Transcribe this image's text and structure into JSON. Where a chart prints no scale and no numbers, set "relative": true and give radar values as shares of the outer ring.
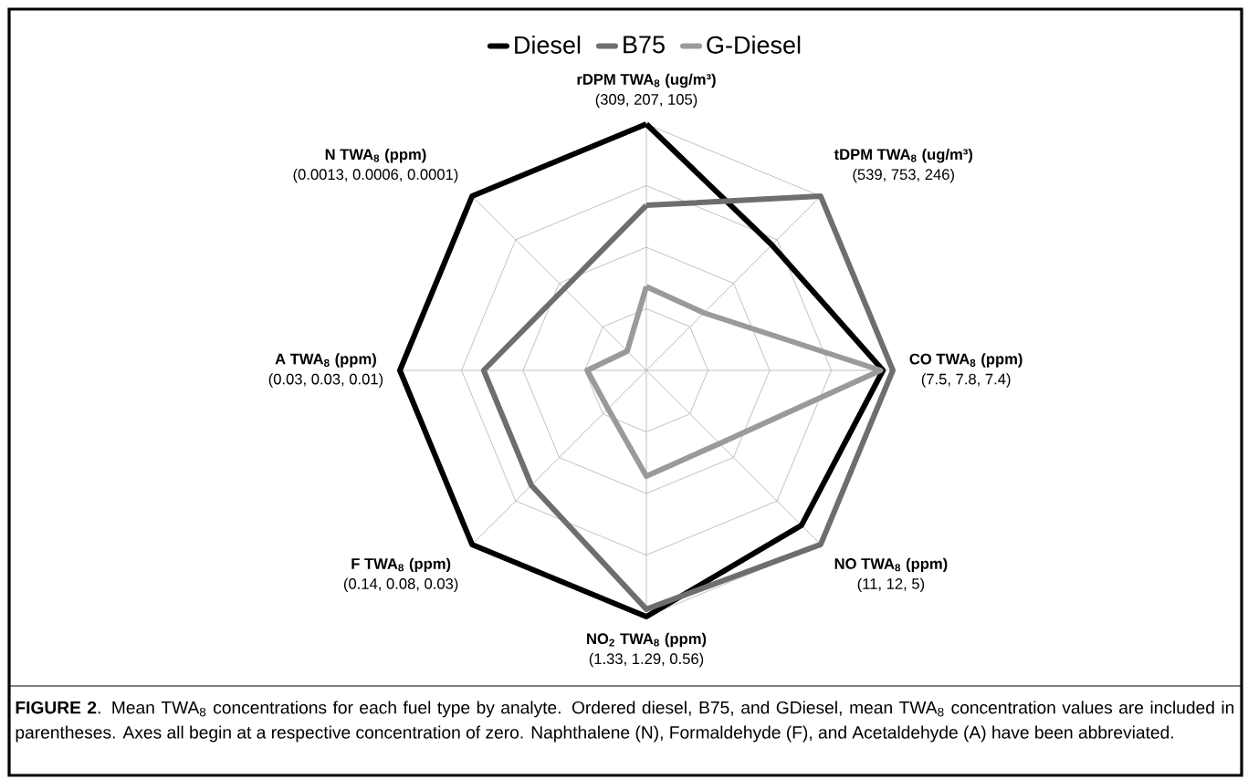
{
  "chart_data": {
    "type": "radar",
    "relative": true,
    "grid": true,
    "legend": "top",
    "categories": [
      "rDPM TWA$_{8}$ (ug/m³)",
      "tDPM TWA$_{8}$ (ug/m³)",
      "CO TWA$_{8}$ (ppm)",
      "NO TWA$_{8}$ (ppm)",
      "NO$_{2}$ TWA$_{8}$ (ppm)",
      "F TWA$_{8}$ (ppm)",
      "A TWA$_{8}$ (ppm)",
      "N TWA$_{8}$ (ppm)"
    ],
    "series": [
      {
        "name": "Diesel",
        "color": "#000000",
        "values": [
          1,
          0.72,
          0.96,
          0.89,
          1,
          1,
          1,
          1
        ]
      },
      {
        "name": "B75",
        "color": "#6e6e6e",
        "values": [
          0.67,
          1,
          1,
          1,
          0.97,
          0.66,
          0.66,
          0.47
        ]
      },
      {
        "name": "G-Diesel",
        "color": "#9a9a9a",
        "values": [
          0.34,
          0.33,
          0.95,
          0.42,
          0.43,
          0.22,
          0.24,
          0.11
        ]
      }
    ],
    "annotations": [
      "(309, 207, 105)",
      "(539, 753, 246)",
      "(7.5, 7.8, 7.4)",
      "(11, 12, 5)",
      "(1.33, 1.29, 0.56)",
      "(0.14, 0.08, 0.03)",
      "(0.03, 0.03, 0.01)",
      "(0.0013, 0.0006, 0.0001)",
      "**FIGURE 2**.   Mean TWA$_{8}$ concentrations for each fuel type by analyte. Ordered diesel, B75, and GDiesel, mean TWA$_{8}$ concentration values are included in parentheses. Axes all begin at a respective concentration of zero. Naphthalene (N), Formaldehyde (F), and Acetaldehyde (A) have been abbreviated."
    ]
  }
}
